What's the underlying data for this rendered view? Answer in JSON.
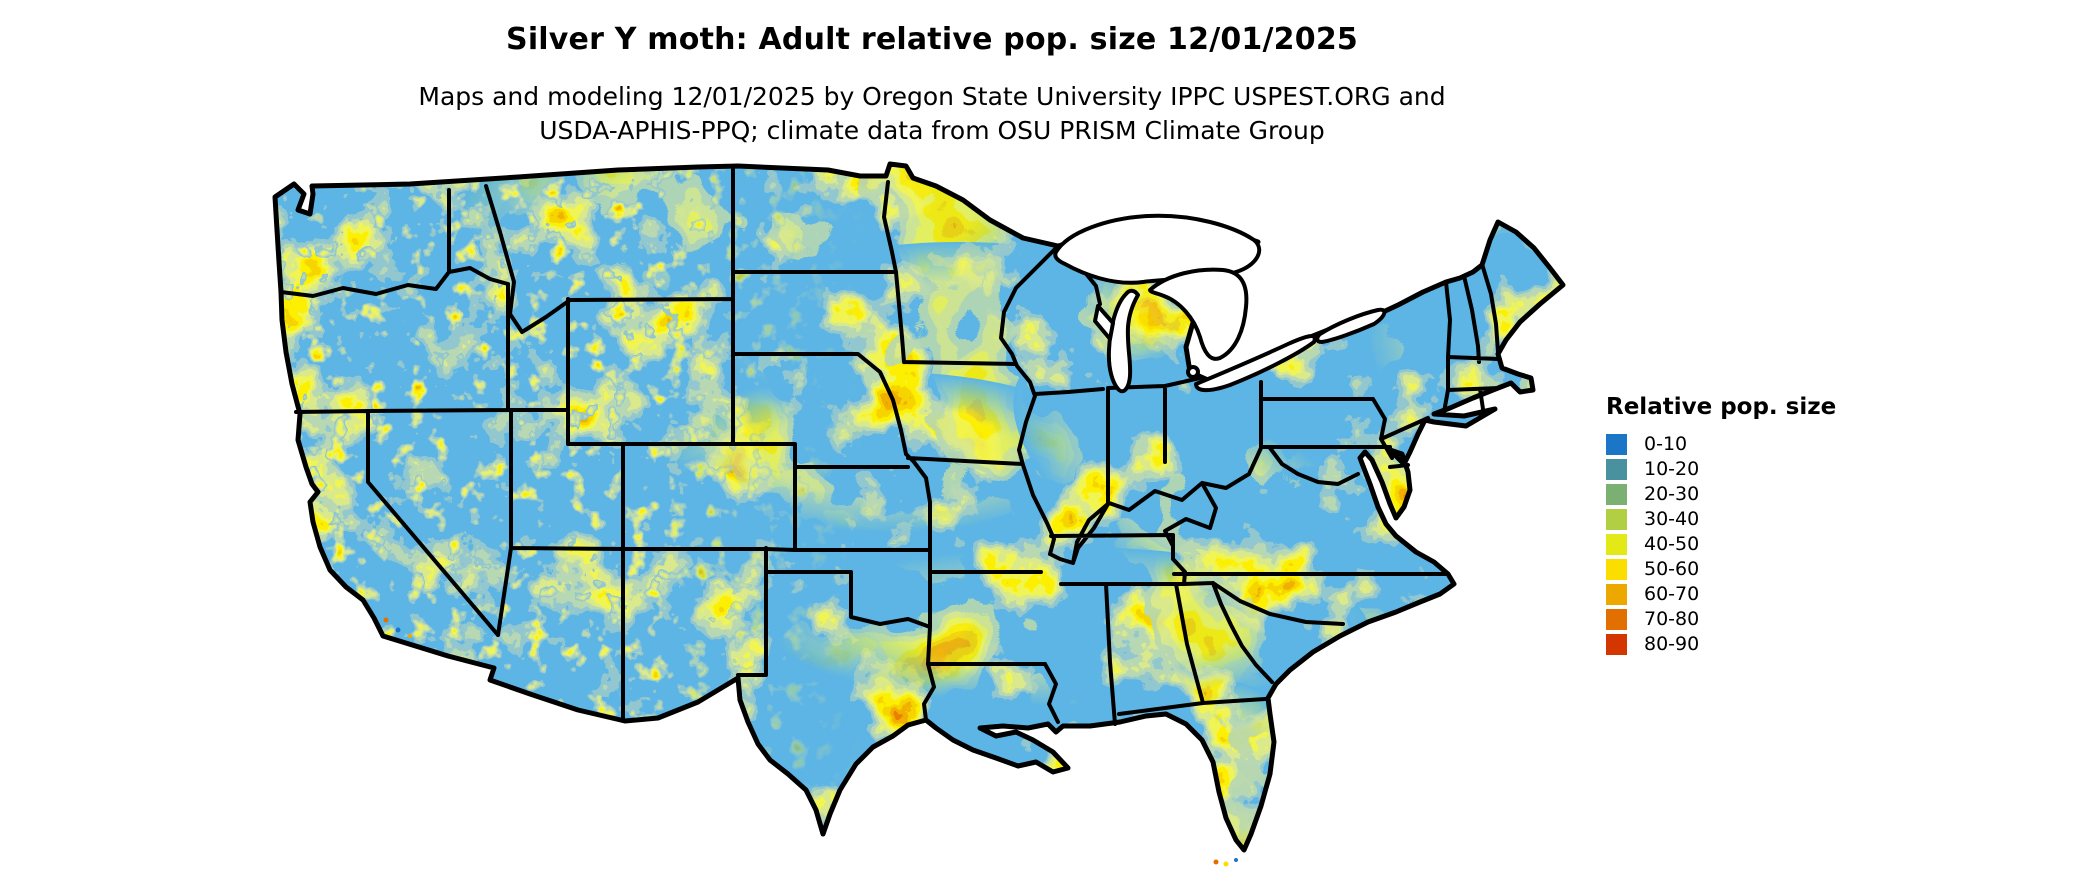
{
  "title": "Silver Y moth: Adult relative pop. size 12/01/2025",
  "subtitle": {
    "line1": "Maps and modeling 12/01/2025 by Oregon State University IPPC USPEST.ORG and",
    "line2": "USDA-APHIS-PPQ; climate data from OSU PRISM Climate Group"
  },
  "legend": {
    "title": "Relative pop. size",
    "classes": [
      {
        "label": "0-10",
        "color": "#1B76C8"
      },
      {
        "label": "10-20",
        "color": "#4A91A0"
      },
      {
        "label": "20-30",
        "color": "#7AB072"
      },
      {
        "label": "30-40",
        "color": "#B2CF43"
      },
      {
        "label": "40-50",
        "color": "#E2E917"
      },
      {
        "label": "50-60",
        "color": "#FBDD00"
      },
      {
        "label": "60-70",
        "color": "#EDA800"
      },
      {
        "label": "70-80",
        "color": "#E17000"
      },
      {
        "label": "80-90",
        "color": "#D33600"
      }
    ]
  },
  "map": {
    "region": "Contiguous United States",
    "border_color": "#000000",
    "water_color": "#FFFFFF",
    "base_class": "0-10",
    "base_color": "#1B76C8"
  },
  "chart_data": {
    "type": "heatmap",
    "title": "Silver Y moth: Adult relative pop. size 12/01/2025",
    "legend_title": "Relative pop. size",
    "classes": [
      "0-10",
      "10-20",
      "20-30",
      "30-40",
      "40-50",
      "50-60",
      "60-70",
      "70-80",
      "80-90"
    ],
    "palette": [
      "#1B76C8",
      "#4A91A0",
      "#7AB072",
      "#B2CF43",
      "#E2E917",
      "#FBDD00",
      "#EDA800",
      "#E17000",
      "#D33600"
    ],
    "notes": "Raster map over the contiguous United States; predominantly 0-10 (blue) with speckled bands of higher values (yellow to red) across the western mountains, northern plains, upper Midwest, Appalachians, the southern band from Texas to Georgia, central Florida and New England."
  }
}
